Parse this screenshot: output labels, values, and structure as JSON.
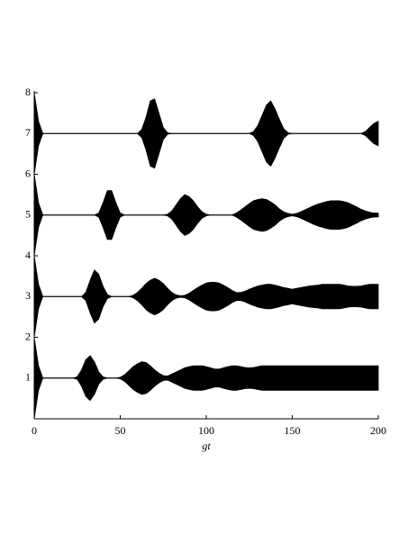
{
  "chart_data": {
    "type": "envelope",
    "xlabel": "gt",
    "x": [
      0,
      2.5,
      5,
      7.5,
      10,
      12.5,
      15,
      17.5,
      20,
      22.5,
      25,
      27.5,
      30,
      32.5,
      35,
      37.5,
      40,
      42.5,
      45,
      47.5,
      50,
      52.5,
      55,
      57.5,
      60,
      62.5,
      65,
      67.5,
      70,
      72.5,
      75,
      77.5,
      80,
      82.5,
      85,
      87.5,
      90,
      92.5,
      95,
      97.5,
      100,
      102.5,
      105,
      107.5,
      110,
      112.5,
      115,
      117.5,
      120,
      122.5,
      125,
      127.5,
      130,
      132.5,
      135,
      137.5,
      140,
      142.5,
      145,
      147.5,
      150,
      152.5,
      155,
      157.5,
      160,
      162.5,
      165,
      167.5,
      170,
      172.5,
      175,
      177.5,
      180,
      182.5,
      185,
      187.5,
      190,
      192.5,
      195,
      197.5,
      200
    ],
    "xlim": [
      0,
      200
    ],
    "xticks": [
      0,
      50,
      100,
      150,
      200
    ],
    "ylim": [
      0,
      8
    ],
    "yticks": [
      1,
      2,
      3,
      4,
      5,
      6,
      7,
      8
    ],
    "series": [
      {
        "color": "#000000",
        "baseline": 7,
        "values": [
          8,
          7.3,
          7,
          7,
          7,
          7,
          7,
          7,
          7,
          7,
          7,
          7,
          7,
          7,
          7,
          7,
          7,
          7,
          7,
          7,
          7,
          7,
          7,
          7,
          7,
          7.1,
          7.4,
          7.8,
          7.85,
          7.5,
          7.15,
          7.02,
          7,
          7,
          7,
          7,
          7,
          7,
          7,
          7,
          7,
          7,
          7,
          7,
          7,
          7,
          7,
          7,
          7,
          7,
          7,
          7.05,
          7.2,
          7.45,
          7.7,
          7.8,
          7.6,
          7.35,
          7.12,
          7.02,
          7,
          7,
          7,
          7,
          7,
          7,
          7,
          7,
          7,
          7,
          7,
          7,
          7,
          7,
          7,
          7,
          7,
          7.05,
          7.15,
          7.25,
          7.3
        ]
      },
      {
        "color": "#000000",
        "baseline": 5,
        "values": [
          6,
          5.3,
          5,
          5,
          5,
          5,
          5,
          5,
          5,
          5,
          5,
          5,
          5,
          5,
          5,
          5.05,
          5.3,
          5.6,
          5.6,
          5.3,
          5.05,
          5,
          5,
          5,
          5,
          5,
          5,
          5,
          5,
          5,
          5,
          5.02,
          5.1,
          5.25,
          5.4,
          5.5,
          5.45,
          5.35,
          5.2,
          5.08,
          5.02,
          5,
          5,
          5,
          5,
          5,
          5,
          5.05,
          5.12,
          5.2,
          5.28,
          5.35,
          5.38,
          5.4,
          5.38,
          5.32,
          5.25,
          5.15,
          5.08,
          5.04,
          5.02,
          5.04,
          5.08,
          5.13,
          5.18,
          5.23,
          5.27,
          5.3,
          5.33,
          5.35,
          5.35,
          5.35,
          5.33,
          5.3,
          5.25,
          5.2,
          5.14,
          5.1,
          5.07,
          5.05,
          5.05
        ]
      },
      {
        "color": "#000000",
        "baseline": 3,
        "values": [
          4,
          3.3,
          3,
          3,
          3,
          3,
          3,
          3,
          3,
          3,
          3,
          3,
          3.1,
          3.4,
          3.65,
          3.55,
          3.25,
          3.05,
          3,
          3,
          3,
          3,
          3,
          3.03,
          3.1,
          3.2,
          3.32,
          3.4,
          3.45,
          3.4,
          3.32,
          3.2,
          3.1,
          3.04,
          3.02,
          3.03,
          3.08,
          3.15,
          3.22,
          3.28,
          3.33,
          3.35,
          3.35,
          3.33,
          3.28,
          3.22,
          3.15,
          3.1,
          3.1,
          3.13,
          3.18,
          3.22,
          3.26,
          3.28,
          3.3,
          3.3,
          3.28,
          3.25,
          3.22,
          3.2,
          3.18,
          3.2,
          3.22,
          3.24,
          3.26,
          3.27,
          3.28,
          3.3,
          3.3,
          3.3,
          3.3,
          3.3,
          3.28,
          3.26,
          3.25,
          3.25,
          3.26,
          3.28,
          3.3,
          3.3,
          3.3
        ]
      },
      {
        "color": "#000000",
        "baseline": 1,
        "values": [
          2,
          1.3,
          1,
          1,
          1,
          1,
          1,
          1,
          1,
          1,
          1.03,
          1.2,
          1.45,
          1.55,
          1.4,
          1.15,
          1.03,
          1,
          1,
          1,
          1.02,
          1.08,
          1.18,
          1.28,
          1.35,
          1.4,
          1.38,
          1.3,
          1.2,
          1.12,
          1.06,
          1.05,
          1.1,
          1.15,
          1.2,
          1.25,
          1.28,
          1.3,
          1.3,
          1.3,
          1.28,
          1.25,
          1.22,
          1.22,
          1.25,
          1.28,
          1.3,
          1.3,
          1.28,
          1.26,
          1.25,
          1.26,
          1.28,
          1.3,
          1.3,
          1.3,
          1.3,
          1.3,
          1.3,
          1.3,
          1.3,
          1.3,
          1.3,
          1.3,
          1.3,
          1.3,
          1.3,
          1.3,
          1.3,
          1.3,
          1.3,
          1.3,
          1.3,
          1.3,
          1.3,
          1.3,
          1.3,
          1.3,
          1.3,
          1.3,
          1.3
        ]
      }
    ]
  }
}
